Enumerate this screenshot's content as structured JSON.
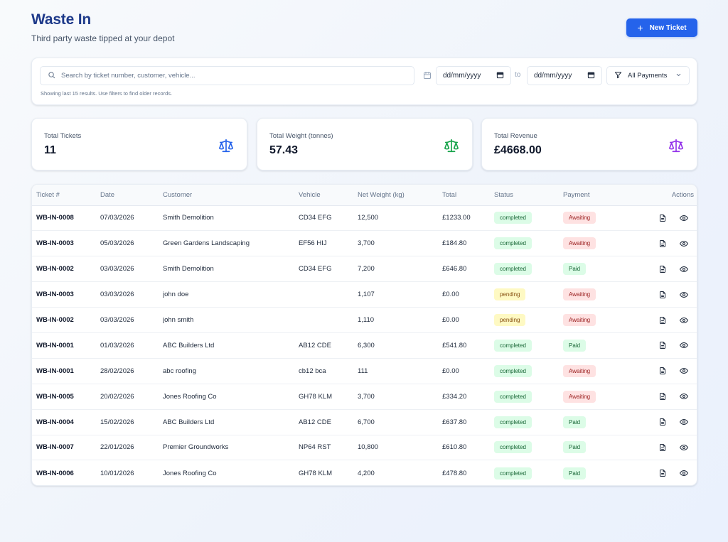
{
  "header": {
    "title": "Waste In",
    "subtitle": "Third party waste tipped at your depot",
    "new_ticket_label": "New Ticket"
  },
  "filters": {
    "search_placeholder": "Search by ticket number, customer, vehicle...",
    "date_from": "dd/mm/yyyy",
    "to_label": "to",
    "date_to": "dd/mm/yyyy",
    "payment_filter": "All Payments",
    "hint": "Showing last 15 results. Use filters to find older records."
  },
  "stats": [
    {
      "label": "Total Tickets",
      "value": "11",
      "icon": "scale-icon",
      "color": "#2563eb"
    },
    {
      "label": "Total Weight (tonnes)",
      "value": "57.43",
      "icon": "scale-icon",
      "color": "#16a34a"
    },
    {
      "label": "Total Revenue",
      "value": "£4668.00",
      "icon": "scale-icon",
      "color": "#9333ea"
    }
  ],
  "table": {
    "columns": [
      "Ticket #",
      "Date",
      "Customer",
      "Vehicle",
      "Net Weight (kg)",
      "Total",
      "Status",
      "Payment",
      "Actions"
    ],
    "rows": [
      {
        "ticket": "WB-IN-0008",
        "date": "07/03/2026",
        "customer": "Smith Demolition",
        "vehicle": "CD34 EFG",
        "weight": "12,500",
        "total": "£1233.00",
        "status": "completed",
        "payment": "Awaiting"
      },
      {
        "ticket": "WB-IN-0003",
        "date": "05/03/2026",
        "customer": "Green Gardens Landscaping",
        "vehicle": "EF56 HIJ",
        "weight": "3,700",
        "total": "£184.80",
        "status": "completed",
        "payment": "Awaiting"
      },
      {
        "ticket": "WB-IN-0002",
        "date": "03/03/2026",
        "customer": "Smith Demolition",
        "vehicle": "CD34 EFG",
        "weight": "7,200",
        "total": "£646.80",
        "status": "completed",
        "payment": "Paid"
      },
      {
        "ticket": "WB-IN-0003",
        "date": "03/03/2026",
        "customer": "john doe",
        "vehicle": "",
        "weight": "1,107",
        "total": "£0.00",
        "status": "pending",
        "payment": "Awaiting"
      },
      {
        "ticket": "WB-IN-0002",
        "date": "03/03/2026",
        "customer": "john smith",
        "vehicle": "",
        "weight": "1,110",
        "total": "£0.00",
        "status": "pending",
        "payment": "Awaiting"
      },
      {
        "ticket": "WB-IN-0001",
        "date": "01/03/2026",
        "customer": "ABC Builders Ltd",
        "vehicle": "AB12 CDE",
        "weight": "6,300",
        "total": "£541.80",
        "status": "completed",
        "payment": "Paid"
      },
      {
        "ticket": "WB-IN-0001",
        "date": "28/02/2026",
        "customer": "abc roofing",
        "vehicle": "cb12 bca",
        "weight": "111",
        "total": "£0.00",
        "status": "completed",
        "payment": "Awaiting"
      },
      {
        "ticket": "WB-IN-0005",
        "date": "20/02/2026",
        "customer": "Jones Roofing Co",
        "vehicle": "GH78 KLM",
        "weight": "3,700",
        "total": "£334.20",
        "status": "completed",
        "payment": "Awaiting"
      },
      {
        "ticket": "WB-IN-0004",
        "date": "15/02/2026",
        "customer": "ABC Builders Ltd",
        "vehicle": "AB12 CDE",
        "weight": "6,700",
        "total": "£637.80",
        "status": "completed",
        "payment": "Paid"
      },
      {
        "ticket": "WB-IN-0007",
        "date": "22/01/2026",
        "customer": "Premier Groundworks",
        "vehicle": "NP64 RST",
        "weight": "10,800",
        "total": "£610.80",
        "status": "completed",
        "payment": "Paid"
      },
      {
        "ticket": "WB-IN-0006",
        "date": "10/01/2026",
        "customer": "Jones Roofing Co",
        "vehicle": "GH78 KLM",
        "weight": "4,200",
        "total": "£478.80",
        "status": "completed",
        "payment": "Paid"
      }
    ]
  },
  "colors": {
    "accent": "#2563eb",
    "title": "#1e3a8a",
    "completed_bg": "#dcfce7",
    "pending_bg": "#fef9c3",
    "awaiting_bg": "#fee2e2"
  }
}
